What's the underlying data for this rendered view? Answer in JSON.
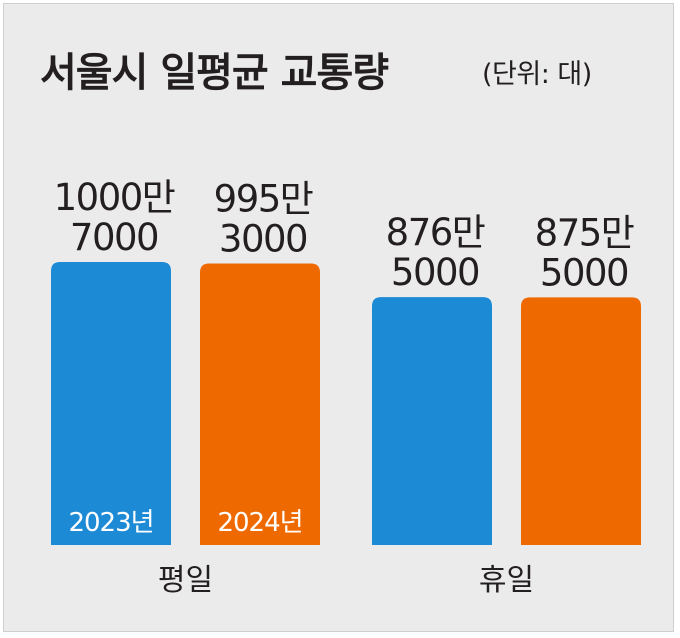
{
  "title": "서울시 일평균 교통량",
  "unit": "(단위: 대)",
  "colors": {
    "2023년": "#1d8ad6",
    "2024년": "#ee6a00",
    "background": "#ebebeb",
    "text": "#231f20"
  },
  "chart_data": {
    "type": "bar",
    "title": "서울시 일평균 교통량",
    "unit": "(단위: 대)",
    "categories": [
      "평일",
      "휴일"
    ],
    "series": [
      {
        "name": "2023년",
        "values": [
          10007000,
          8765000
        ],
        "labels": [
          [
            "1000만",
            "7000"
          ],
          [
            "876만",
            "5000"
          ]
        ]
      },
      {
        "name": "2024년",
        "values": [
          9953000,
          8755000
        ],
        "labels": [
          [
            "995만",
            "3000"
          ],
          [
            "875만",
            "5000"
          ]
        ]
      }
    ],
    "legend": "in-bar labels"
  }
}
